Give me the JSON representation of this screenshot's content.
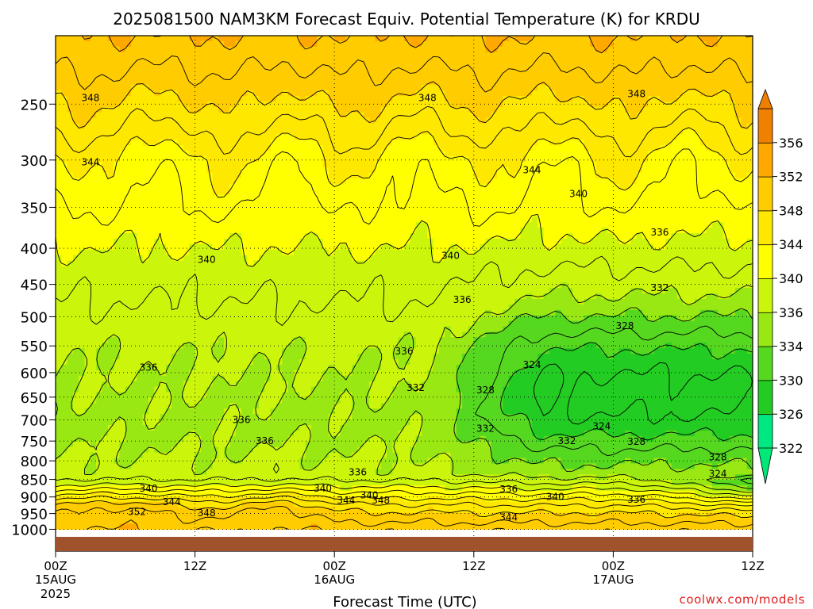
{
  "chart_data": {
    "type": "heatmap",
    "title": "2025081500 NAM3KM Forecast Equiv. Potential Temperature (K) for KRDU",
    "xlabel": "Forecast Time (UTC)",
    "ylabel": "",
    "credit": "coolwx.com/models",
    "x_ticks": [
      {
        "hour": 0,
        "label": "00Z",
        "sub": [
          "15AUG",
          "2025"
        ]
      },
      {
        "hour": 12,
        "label": "12Z",
        "sub": []
      },
      {
        "hour": 24,
        "label": "00Z",
        "sub": [
          "16AUG"
        ]
      },
      {
        "hour": 36,
        "label": "12Z",
        "sub": []
      },
      {
        "hour": 48,
        "label": "00Z",
        "sub": [
          "17AUG"
        ]
      },
      {
        "hour": 60,
        "label": "12Z",
        "sub": []
      }
    ],
    "xlim": [
      0,
      60
    ],
    "y_ticks": [
      250,
      300,
      350,
      400,
      450,
      500,
      550,
      600,
      650,
      700,
      750,
      800,
      850,
      900,
      950,
      1000
    ],
    "ylim": [
      200,
      1025
    ],
    "y_scale": "log-pressure",
    "y_units": "hPa",
    "grid": true,
    "colorbar": {
      "levels": [
        322,
        326,
        330,
        334,
        336,
        340,
        344,
        348,
        352,
        356
      ],
      "colors": [
        "#00e882",
        "#22cc22",
        "#55d81f",
        "#99e814",
        "#ccf50c",
        "#ffff00",
        "#ffe800",
        "#ffcc00",
        "#ffa800",
        "#f08000"
      ],
      "low_arrow_color": "#00e878",
      "high_arrow_color": "#ef7f00",
      "placement": "right"
    },
    "ground_color": "#a0522d",
    "contour_labels": [
      {
        "value": "348",
        "hour": 3,
        "p": 245
      },
      {
        "value": "348",
        "hour": 32,
        "p": 245
      },
      {
        "value": "348",
        "hour": 50,
        "p": 242
      },
      {
        "value": "344",
        "hour": 3,
        "p": 302
      },
      {
        "value": "344",
        "hour": 41,
        "p": 310
      },
      {
        "value": "340",
        "hour": 45,
        "p": 335
      },
      {
        "value": "336",
        "hour": 52,
        "p": 380
      },
      {
        "value": "340",
        "hour": 13,
        "p": 415
      },
      {
        "value": "340",
        "hour": 34,
        "p": 410
      },
      {
        "value": "336",
        "hour": 35,
        "p": 473
      },
      {
        "value": "332",
        "hour": 52,
        "p": 455
      },
      {
        "value": "328",
        "hour": 49,
        "p": 515
      },
      {
        "value": "336",
        "hour": 30,
        "p": 560
      },
      {
        "value": "336",
        "hour": 8,
        "p": 590
      },
      {
        "value": "324",
        "hour": 41,
        "p": 585
      },
      {
        "value": "332",
        "hour": 31,
        "p": 630
      },
      {
        "value": "328",
        "hour": 37,
        "p": 635
      },
      {
        "value": "336",
        "hour": 16,
        "p": 700
      },
      {
        "value": "332",
        "hour": 37,
        "p": 720
      },
      {
        "value": "324",
        "hour": 47,
        "p": 715
      },
      {
        "value": "336",
        "hour": 18,
        "p": 750
      },
      {
        "value": "332",
        "hour": 44,
        "p": 750
      },
      {
        "value": "328",
        "hour": 50,
        "p": 752
      },
      {
        "value": "328",
        "hour": 57,
        "p": 790
      },
      {
        "value": "336",
        "hour": 26,
        "p": 830
      },
      {
        "value": "324",
        "hour": 57,
        "p": 835
      },
      {
        "value": "340",
        "hour": 8,
        "p": 875
      },
      {
        "value": "340",
        "hour": 23,
        "p": 875
      },
      {
        "value": "336",
        "hour": 39,
        "p": 878
      },
      {
        "value": "340",
        "hour": 27,
        "p": 895
      },
      {
        "value": "340",
        "hour": 43,
        "p": 900
      },
      {
        "value": "336",
        "hour": 50,
        "p": 908
      },
      {
        "value": "344",
        "hour": 10,
        "p": 915
      },
      {
        "value": "344",
        "hour": 25,
        "p": 910
      },
      {
        "value": "348",
        "hour": 28,
        "p": 910
      },
      {
        "value": "352",
        "hour": 7,
        "p": 945
      },
      {
        "value": "348",
        "hour": 13,
        "p": 948
      },
      {
        "value": "344",
        "hour": 39,
        "p": 962
      }
    ]
  }
}
